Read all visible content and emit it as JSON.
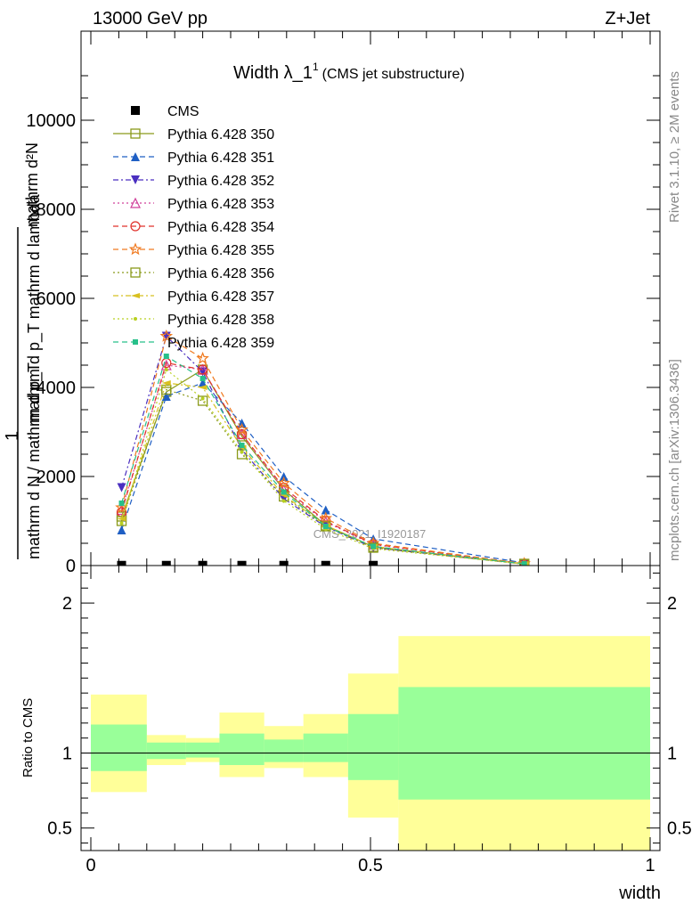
{
  "header": {
    "left": "13000 GeV pp",
    "right": "Z+Jet"
  },
  "side": {
    "rivet": "Rivet 3.1.10, ≥ 2M events",
    "mcplots": "mcplots.cern.ch [arXiv:1306.3436]"
  },
  "watermark": "CMS_2021_I1920187",
  "chart_data": [
    {
      "type": "line",
      "title_main": "Width λ_1",
      "title_sup": "1",
      "title_sub": "(CMS jet substructure)",
      "ylabel_lines": [
        "mathrm d²N",
        "mathrm d p_T mathrm d lambda",
        "1",
        "mathrm d N / mathrm d p_T"
      ],
      "xlim": [
        0,
        1
      ],
      "ylim": [
        0,
        12000
      ],
      "y_ticks": [
        0,
        2000,
        4000,
        6000,
        8000,
        10000
      ],
      "y_tick_labels": [
        "0",
        "2000",
        "4000",
        "6000",
        "8000",
        "10000"
      ],
      "x": [
        0.055,
        0.135,
        0.2,
        0.27,
        0.345,
        0.42,
        0.505,
        0.775
      ],
      "x_bins": [
        [
          0,
          0.1
        ],
        [
          0.1,
          0.17
        ],
        [
          0.17,
          0.23
        ],
        [
          0.23,
          0.31
        ],
        [
          0.31,
          0.38
        ],
        [
          0.38,
          0.46
        ],
        [
          0.46,
          0.55
        ],
        [
          0.55,
          1.0
        ]
      ],
      "series": [
        {
          "name": "CMS",
          "color": "#000000",
          "marker": "square-filled",
          "dash": "none",
          "values": [
            5,
            5,
            5,
            5,
            5,
            5,
            5,
            5
          ]
        },
        {
          "name": "Pythia 6.428 350",
          "color": "#8a9a1a",
          "marker": "square-open",
          "dash": "solid",
          "values": [
            1100,
            3900,
            4400,
            2900,
            1700,
            900,
            420,
            40
          ]
        },
        {
          "name": "Pythia 6.428 351",
          "color": "#1f5fc4",
          "marker": "triangle-up-filled",
          "dash": "6,4",
          "values": [
            800,
            3800,
            4100,
            3200,
            2000,
            1250,
            600,
            60
          ]
        },
        {
          "name": "Pythia 6.428 352",
          "color": "#4a2fc0",
          "marker": "triangle-down-filled",
          "dash": "6,3,2,3",
          "values": [
            1750,
            5150,
            4350,
            2600,
            1500,
            870,
            400,
            35
          ]
        },
        {
          "name": "Pythia 6.428 353",
          "color": "#d0409a",
          "marker": "triangle-up-open",
          "dash": "2,3",
          "values": [
            1250,
            4500,
            4400,
            2950,
            1700,
            980,
            470,
            40
          ]
        },
        {
          "name": "Pythia 6.428 354",
          "color": "#e0302a",
          "marker": "circle-open",
          "dash": "6,4",
          "values": [
            1200,
            4550,
            4400,
            2950,
            1750,
            1000,
            480,
            42
          ]
        },
        {
          "name": "Pythia 6.428 355",
          "color": "#f07a20",
          "marker": "star-open",
          "dash": "6,4",
          "values": [
            1300,
            5150,
            4650,
            3050,
            1850,
            1060,
            500,
            45
          ]
        },
        {
          "name": "Pythia 6.428 356",
          "color": "#8a9a1a",
          "marker": "square-open",
          "dash": "2,3",
          "values": [
            1000,
            3950,
            3700,
            2500,
            1550,
            880,
            400,
            35
          ]
        },
        {
          "name": "Pythia 6.428 357",
          "color": "#d8c020",
          "marker": "triangle-left",
          "dash": "6,3,2,3",
          "values": [
            1050,
            4100,
            4000,
            2650,
            1580,
            900,
            430,
            37
          ]
        },
        {
          "name": "Pythia 6.428 358",
          "color": "#b8d020",
          "marker": "dot",
          "dash": "2,3",
          "values": [
            950,
            4400,
            3750,
            2550,
            1450,
            820,
            380,
            33
          ]
        },
        {
          "name": "Pythia 6.428 359",
          "color": "#28c08a",
          "marker": "square-filled-small",
          "dash": "6,4",
          "values": [
            1400,
            4700,
            4200,
            2700,
            1650,
            880,
            430,
            38
          ]
        }
      ]
    },
    {
      "type": "area",
      "ylabel": "Ratio to CMS",
      "xlabel": "width",
      "xlim": [
        0,
        1
      ],
      "ylim": [
        0.35,
        2.25
      ],
      "y_ticks": [
        0.5,
        1,
        2
      ],
      "y_tick_labels": [
        "0.5",
        "1",
        "2"
      ],
      "x_ticks": [
        0,
        0.5,
        1
      ],
      "x_tick_labels": [
        "0",
        "0.5",
        "1"
      ],
      "bins": [
        [
          0,
          0.1
        ],
        [
          0.1,
          0.17
        ],
        [
          0.17,
          0.23
        ],
        [
          0.23,
          0.31
        ],
        [
          0.31,
          0.38
        ],
        [
          0.38,
          0.46
        ],
        [
          0.46,
          0.55
        ],
        [
          0.55,
          1.0
        ]
      ],
      "stat_band": {
        "color": "#99ff99",
        "low": [
          0.88,
          0.96,
          0.97,
          0.92,
          0.94,
          0.94,
          0.82,
          0.69
        ],
        "high": [
          1.19,
          1.07,
          1.07,
          1.13,
          1.09,
          1.13,
          1.26,
          1.44
        ]
      },
      "total_band": {
        "color": "#ffff99",
        "low": [
          0.74,
          0.92,
          0.94,
          0.84,
          0.9,
          0.84,
          0.57,
          0.35
        ],
        "high": [
          1.39,
          1.12,
          1.1,
          1.27,
          1.18,
          1.26,
          1.53,
          1.78
        ]
      },
      "reference": 1
    }
  ]
}
